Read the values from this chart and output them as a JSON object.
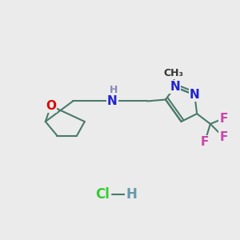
{
  "background_color": "#ebebeb",
  "bond_color": "#4a7a6a",
  "bond_width": 1.5,
  "fig_size": [
    3.0,
    3.0
  ],
  "dpi": 100,
  "colors": {
    "O": "#dd0000",
    "N": "#2222cc",
    "NH": "#8888bb",
    "F": "#cc44aa",
    "C": "#4a7a6a",
    "Cl": "#33cc33",
    "H": "#6699aa",
    "CH3": "#333333"
  },
  "fontsize": 10,
  "hfontsize": 9
}
